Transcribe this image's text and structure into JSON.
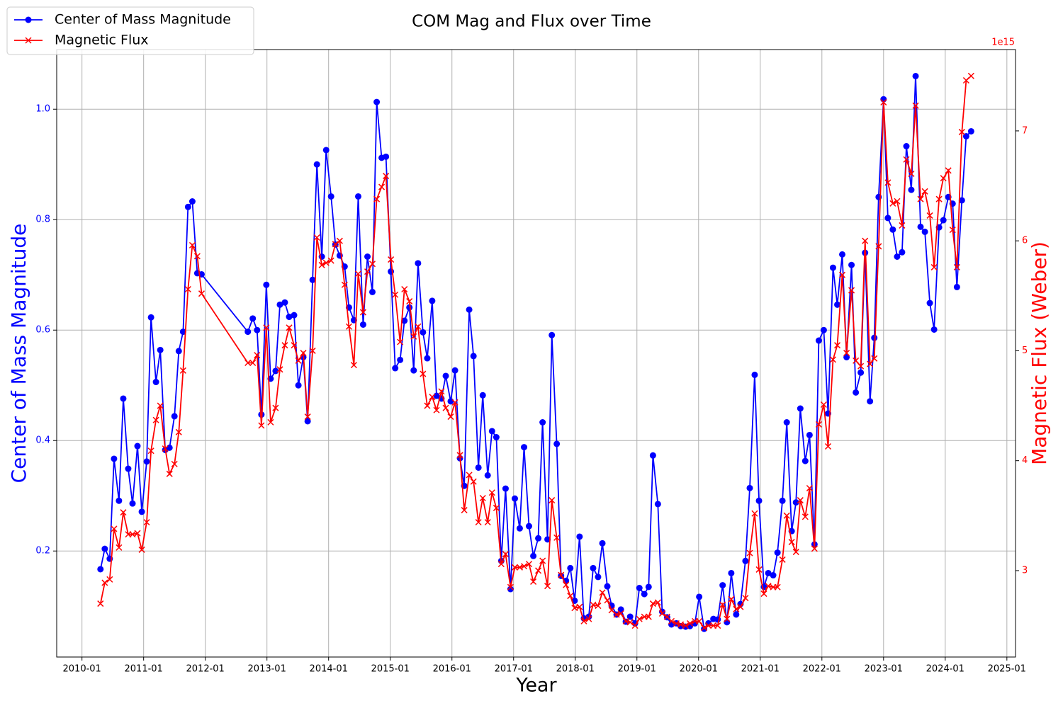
{
  "chart_data": {
    "type": "line",
    "title": "COM Mag and Flux over Time",
    "x_label": "Year",
    "y_label": "Center of Mass Magnitude",
    "y2_label": "Magnetic Flux (Weber)",
    "y2_offset_label": "1e15",
    "legend": "upper left",
    "grid": true,
    "xlim": [
      2009.59,
      2025.14
    ],
    "xticks": [
      {
        "value": 2010,
        "label": "2010-01"
      },
      {
        "value": 2011,
        "label": "2011-01"
      },
      {
        "value": 2012,
        "label": "2012-01"
      },
      {
        "value": 2013,
        "label": "2013-01"
      },
      {
        "value": 2014,
        "label": "2014-01"
      },
      {
        "value": 2015,
        "label": "2015-01"
      },
      {
        "value": 2016,
        "label": "2016-01"
      },
      {
        "value": 2017,
        "label": "2017-01"
      },
      {
        "value": 2018,
        "label": "2018-01"
      },
      {
        "value": 2019,
        "label": "2019-01"
      },
      {
        "value": 2020,
        "label": "2020-01"
      },
      {
        "value": 2021,
        "label": "2021-01"
      },
      {
        "value": 2022,
        "label": "2022-01"
      },
      {
        "value": 2023,
        "label": "2023-01"
      },
      {
        "value": 2024,
        "label": "2024-01"
      },
      {
        "value": 2025,
        "label": "2025-01"
      }
    ],
    "ylim": [
      0.008,
      1.108
    ],
    "yticks": [
      0.2,
      0.4,
      0.6,
      0.8,
      {
        "value": 1,
        "label": "1.0"
      }
    ],
    "y2lim": [
      2.214,
      7.74
    ],
    "y2ticks": [
      3,
      4,
      5,
      6,
      7
    ],
    "x": [
      2010.3,
      2010.37,
      2010.45,
      2010.52,
      2010.6,
      2010.67,
      2010.75,
      2010.82,
      2010.9,
      2010.97,
      2011.05,
      2011.12,
      2011.2,
      2011.27,
      2011.35,
      2011.42,
      2011.5,
      2011.57,
      2011.64,
      2011.72,
      2011.79,
      2011.87,
      2011.94,
      2012.69,
      2012.77,
      2012.84,
      2012.91,
      2012.99,
      2013.06,
      2013.14,
      2013.21,
      2013.29,
      2013.36,
      2013.44,
      2013.51,
      2013.59,
      2013.66,
      2013.74,
      2013.81,
      2013.89,
      2013.96,
      2014.04,
      2014.11,
      2014.18,
      2014.26,
      2014.33,
      2014.41,
      2014.48,
      2014.56,
      2014.63,
      2014.71,
      2014.78,
      2014.86,
      2014.93,
      2015.01,
      2015.08,
      2015.16,
      2015.23,
      2015.31,
      2015.38,
      2015.45,
      2015.53,
      2015.6,
      2015.68,
      2015.75,
      2015.83,
      2015.9,
      2015.98,
      2016.05,
      2016.13,
      2016.2,
      2016.28,
      2016.35,
      2016.43,
      2016.5,
      2016.58,
      2016.65,
      2016.72,
      2016.8,
      2016.87,
      2016.95,
      2017.02,
      2017.1,
      2017.17,
      2017.25,
      2017.32,
      2017.4,
      2017.47,
      2017.55,
      2017.62,
      2017.7,
      2017.77,
      2017.85,
      2017.92,
      2017.99,
      2018.07,
      2018.14,
      2018.22,
      2018.29,
      2018.37,
      2018.44,
      2018.52,
      2018.59,
      2018.67,
      2018.74,
      2018.82,
      2018.89,
      2018.97,
      2019.04,
      2019.12,
      2019.19,
      2019.26,
      2019.34,
      2019.41,
      2019.49,
      2019.56,
      2019.64,
      2019.71,
      2019.79,
      2019.86,
      2019.94,
      2020.01,
      2020.09,
      2020.16,
      2020.24,
      2020.31,
      2020.39,
      2020.46,
      2020.53,
      2020.61,
      2020.68,
      2020.76,
      2020.83,
      2020.91,
      2020.98,
      2021.06,
      2021.13,
      2021.21,
      2021.28,
      2021.36,
      2021.43,
      2021.51,
      2021.58,
      2021.65,
      2021.73,
      2021.8,
      2021.88,
      2021.95,
      2022.03,
      2022.1,
      2022.18,
      2022.25,
      2022.33,
      2022.4,
      2022.48,
      2022.55,
      2022.63,
      2022.7,
      2022.78,
      2022.85,
      2022.92,
      2023.0,
      2023.07,
      2023.15,
      2023.22,
      2023.3,
      2023.37,
      2023.45,
      2023.52,
      2023.6,
      2023.67,
      2023.75,
      2023.82,
      2023.9,
      2023.97,
      2024.05,
      2024.12,
      2024.19,
      2024.27,
      2024.34,
      2024.42
    ],
    "series": [
      {
        "name": "Center of Mass Magnitude",
        "color": "#0000ff",
        "marker": "o",
        "axis": "y",
        "values": [
          0.167,
          0.204,
          0.186,
          0.367,
          0.291,
          0.476,
          0.349,
          0.286,
          0.39,
          0.271,
          0.362,
          0.623,
          0.506,
          0.564,
          0.383,
          0.387,
          0.444,
          0.562,
          0.597,
          0.823,
          0.833,
          0.703,
          0.701,
          0.597,
          0.621,
          0.6,
          0.447,
          0.682,
          0.512,
          0.526,
          0.646,
          0.65,
          0.624,
          0.627,
          0.5,
          0.551,
          0.435,
          0.691,
          0.9,
          0.733,
          0.926,
          0.842,
          0.755,
          0.735,
          0.715,
          0.641,
          0.618,
          0.842,
          0.61,
          0.733,
          0.669,
          1.013,
          0.912,
          0.914,
          0.706,
          0.531,
          0.546,
          0.617,
          0.641,
          0.527,
          0.721,
          0.596,
          0.549,
          0.653,
          0.481,
          0.476,
          0.517,
          0.471,
          0.527,
          0.368,
          0.318,
          0.637,
          0.553,
          0.351,
          0.482,
          0.337,
          0.417,
          0.406,
          0.182,
          0.313,
          0.131,
          0.295,
          0.241,
          0.388,
          0.245,
          0.191,
          0.223,
          0.433,
          0.221,
          0.591,
          0.394,
          0.155,
          0.146,
          0.169,
          0.11,
          0.226,
          0.078,
          0.081,
          0.169,
          0.153,
          0.214,
          0.136,
          0.101,
          0.085,
          0.094,
          0.072,
          0.081,
          0.069,
          0.133,
          0.122,
          0.135,
          0.373,
          0.285,
          0.09,
          0.08,
          0.067,
          0.069,
          0.064,
          0.063,
          0.064,
          0.069,
          0.117,
          0.059,
          0.069,
          0.077,
          0.076,
          0.138,
          0.071,
          0.16,
          0.085,
          0.104,
          0.182,
          0.314,
          0.519,
          0.291,
          0.135,
          0.16,
          0.156,
          0.197,
          0.291,
          0.433,
          0.236,
          0.288,
          0.458,
          0.363,
          0.41,
          0.212,
          0.581,
          0.6,
          0.449,
          0.713,
          0.646,
          0.737,
          0.551,
          0.718,
          0.487,
          0.523,
          0.74,
          0.471,
          0.586,
          0.841,
          1.018,
          0.803,
          0.782,
          0.733,
          0.741,
          0.933,
          0.854,
          1.06,
          0.787,
          0.778,
          0.649,
          0.601,
          0.786,
          0.799,
          0.841,
          0.829,
          0.678,
          0.835,
          0.951,
          0.96
        ]
      },
      {
        "name": "Magnetic Flux",
        "color": "#ff0000",
        "marker": "x",
        "axis": "y2",
        "values": [
          2.7,
          2.89,
          2.92,
          3.38,
          3.21,
          3.53,
          3.33,
          3.33,
          3.34,
          3.19,
          3.44,
          4.09,
          4.37,
          4.5,
          4.11,
          3.88,
          3.97,
          4.26,
          4.82,
          5.56,
          5.96,
          5.86,
          5.52,
          4.89,
          4.89,
          4.96,
          4.32,
          5.21,
          4.35,
          4.48,
          4.83,
          5.05,
          5.21,
          5.05,
          4.91,
          4.98,
          4.4,
          5.0,
          6.03,
          5.78,
          5.8,
          5.82,
          5.97,
          6.0,
          5.6,
          5.22,
          4.87,
          5.7,
          5.35,
          5.72,
          5.79,
          6.38,
          6.49,
          6.59,
          5.83,
          5.51,
          5.08,
          5.56,
          5.45,
          5.13,
          5.22,
          4.79,
          4.5,
          4.58,
          4.46,
          4.63,
          4.48,
          4.4,
          4.53,
          4.05,
          3.55,
          3.87,
          3.81,
          3.44,
          3.66,
          3.44,
          3.71,
          3.57,
          3.06,
          3.15,
          2.85,
          3.03,
          3.03,
          3.04,
          3.06,
          2.9,
          3.0,
          3.09,
          2.86,
          3.64,
          3.3,
          2.96,
          2.87,
          2.77,
          2.66,
          2.67,
          2.54,
          2.56,
          2.69,
          2.68,
          2.8,
          2.73,
          2.64,
          2.6,
          2.61,
          2.54,
          2.53,
          2.5,
          2.56,
          2.58,
          2.58,
          2.7,
          2.71,
          2.61,
          2.58,
          2.54,
          2.52,
          2.51,
          2.5,
          2.52,
          2.54,
          2.54,
          2.48,
          2.5,
          2.5,
          2.5,
          2.69,
          2.56,
          2.74,
          2.65,
          2.67,
          2.75,
          3.16,
          3.52,
          3.01,
          2.79,
          2.86,
          2.85,
          2.85,
          3.1,
          3.5,
          3.26,
          3.17,
          3.64,
          3.49,
          3.75,
          3.2,
          4.33,
          4.51,
          4.13,
          4.92,
          5.05,
          5.69,
          4.98,
          5.55,
          4.91,
          4.86,
          6.0,
          4.88,
          4.93,
          5.95,
          7.26,
          6.53,
          6.34,
          6.36,
          6.14,
          6.74,
          6.61,
          7.23,
          6.38,
          6.45,
          6.23,
          5.76,
          6.38,
          6.57,
          6.64,
          6.1,
          5.76,
          6.99,
          7.46,
          7.5
        ]
      }
    ]
  }
}
